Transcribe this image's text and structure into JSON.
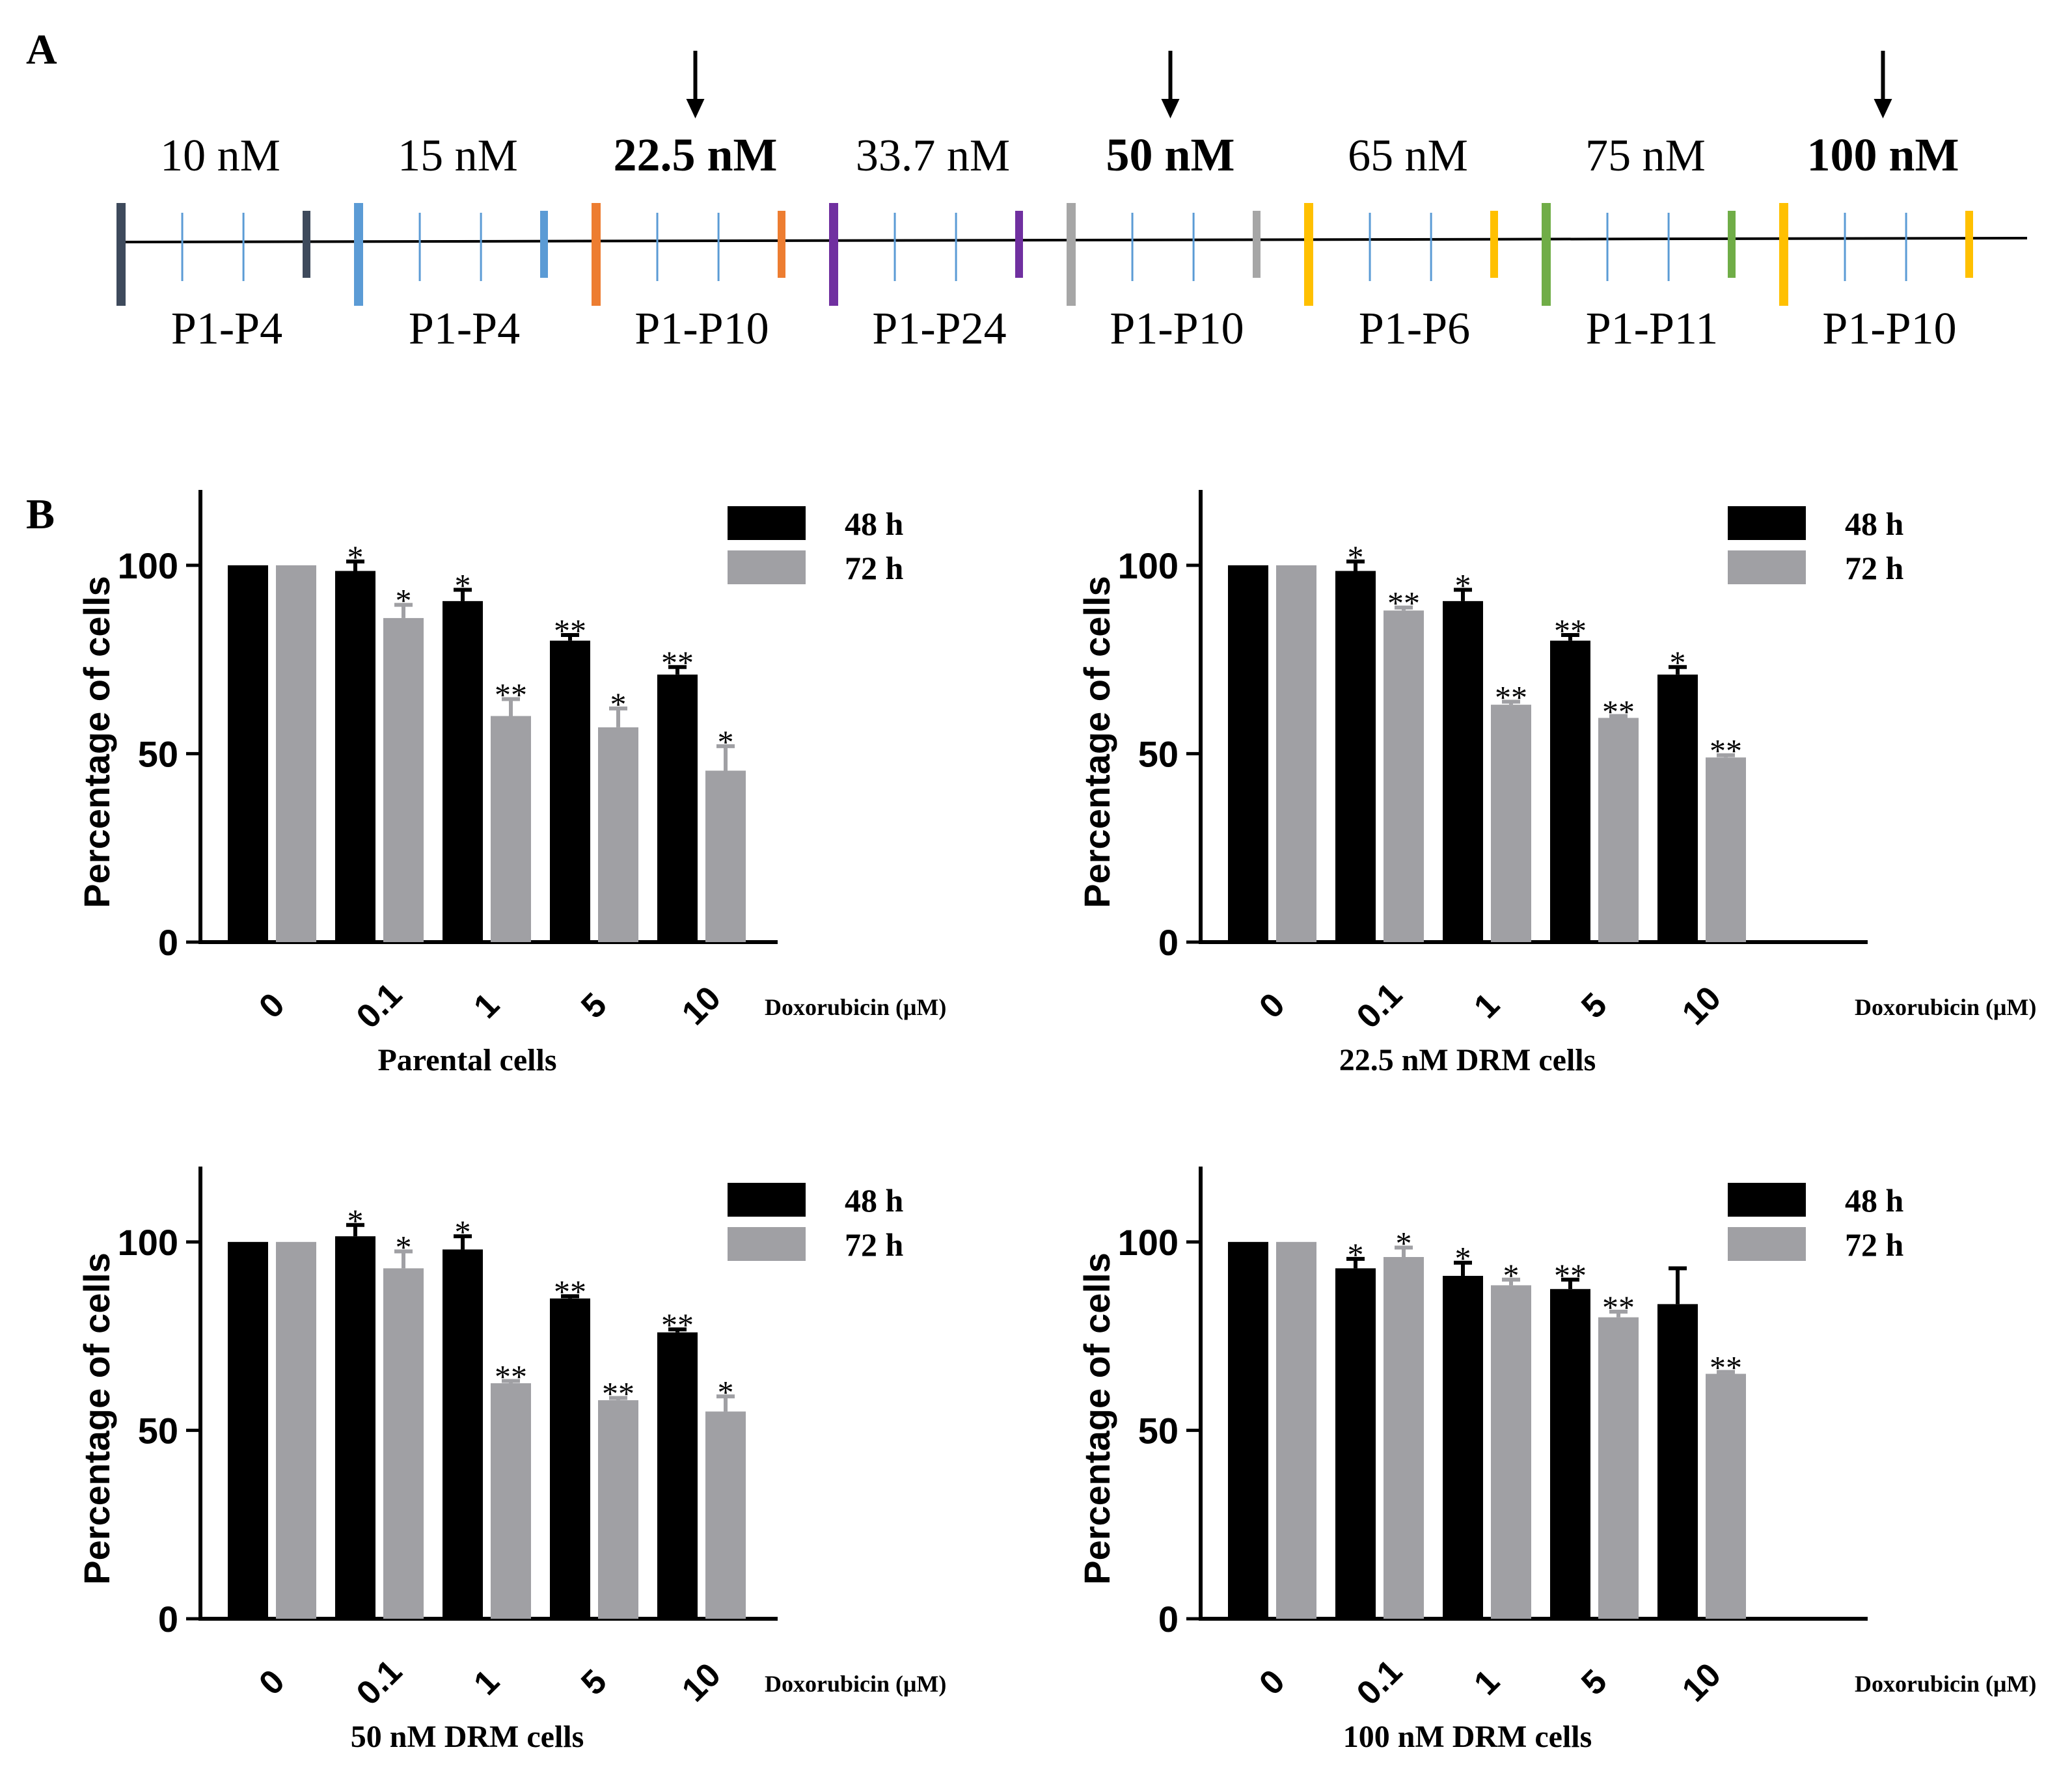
{
  "panel_a": {
    "label": "A",
    "stages": [
      {
        "concentration": "10 nM",
        "passages": "P1-P4",
        "color": "#3e4a5c",
        "bold": false,
        "arrow": false
      },
      {
        "concentration": "15 nM",
        "passages": "P1-P4",
        "color": "#5b9bd5",
        "bold": false,
        "arrow": false
      },
      {
        "concentration": "22.5 nM",
        "passages": "P1-P10",
        "color": "#ed7d31",
        "bold": true,
        "arrow": true
      },
      {
        "concentration": "33.7 nM",
        "passages": "P1-P24",
        "color": "#7030a0",
        "bold": false,
        "arrow": false
      },
      {
        "concentration": "50 nM",
        "passages": "P1-P10",
        "color": "#a6a6a6",
        "bold": true,
        "arrow": true
      },
      {
        "concentration": "65 nM",
        "passages": "P1-P6",
        "color": "#ffc000",
        "bold": false,
        "arrow": false
      },
      {
        "concentration": "75 nM",
        "passages": "P1-P11",
        "color": "#70ad47",
        "bold": false,
        "arrow": false
      },
      {
        "concentration": "100 nM",
        "passages": "P1-P10",
        "color": "#ffc000",
        "bold": true,
        "arrow": true
      }
    ],
    "minor_tick_color": "#5b9bd5"
  },
  "panel_b": {
    "label": "B"
  },
  "chart_data": [
    {
      "type": "bar",
      "title": "Parental cells",
      "ylabel": "Percentage of cells",
      "xlabel": "Doxorubicin (μM)",
      "categories": [
        "0",
        "0.1",
        "1",
        "5",
        "10"
      ],
      "ylim": [
        0,
        120
      ],
      "yticks": [
        0,
        50,
        100
      ],
      "legend_position": "top-right",
      "series": [
        {
          "name": "48 h",
          "color": "#000000",
          "values": [
            100,
            98.5,
            90.5,
            80,
            71
          ],
          "errors": [
            0,
            2.5,
            3,
            1.5,
            2
          ],
          "significance": [
            "",
            "*",
            "*",
            "**",
            "**"
          ]
        },
        {
          "name": "72 h",
          "color": "#a0a0a4",
          "values": [
            100,
            86,
            60,
            57,
            45.5
          ],
          "errors": [
            0,
            3.5,
            4.5,
            5,
            6.5
          ],
          "significance": [
            "",
            "*",
            "**",
            "*",
            "*"
          ]
        }
      ]
    },
    {
      "type": "bar",
      "title": "22.5 nM DRM cells",
      "ylabel": "Percentage of cells",
      "xlabel": "Doxorubicin (μM)",
      "categories": [
        "0",
        "0.1",
        "1",
        "5",
        "10"
      ],
      "ylim": [
        0,
        120
      ],
      "yticks": [
        0,
        50,
        100
      ],
      "legend_position": "top-right",
      "series": [
        {
          "name": "48 h",
          "color": "#000000",
          "values": [
            100,
            98.5,
            90.5,
            80,
            71
          ],
          "errors": [
            0,
            2.5,
            3,
            1.5,
            2
          ],
          "significance": [
            "",
            "*",
            "*",
            "**",
            "*"
          ]
        },
        {
          "name": "72 h",
          "color": "#a0a0a4",
          "values": [
            100,
            88,
            63,
            59.5,
            49
          ],
          "errors": [
            0,
            0.8,
            0.8,
            0.5,
            0.6
          ],
          "significance": [
            "",
            "**",
            "**",
            "**",
            "**"
          ]
        }
      ]
    },
    {
      "type": "bar",
      "title": "50 nM DRM cells",
      "ylabel": "Percentage of cells",
      "xlabel": "Doxorubicin (μM)",
      "categories": [
        "0",
        "0.1",
        "1",
        "5",
        "10"
      ],
      "ylim": [
        0,
        120
      ],
      "yticks": [
        0,
        50,
        100
      ],
      "legend_position": "top-right",
      "series": [
        {
          "name": "48 h",
          "color": "#000000",
          "values": [
            100,
            101.5,
            98,
            85,
            76
          ],
          "errors": [
            0,
            3,
            3.5,
            0.6,
            0.8
          ],
          "significance": [
            "",
            "*",
            "*",
            "**",
            "**"
          ]
        },
        {
          "name": "72 h",
          "color": "#a0a0a4",
          "values": [
            100,
            93,
            62.5,
            58,
            55
          ],
          "errors": [
            0,
            4.5,
            0.6,
            0.6,
            4
          ],
          "significance": [
            "",
            "*",
            "**",
            "**",
            "*"
          ]
        }
      ]
    },
    {
      "type": "bar",
      "title": "100 nM DRM cells",
      "ylabel": "Percentage of cells",
      "xlabel": "Doxorubicin (μM)",
      "categories": [
        "0",
        "0.1",
        "1",
        "5",
        "10"
      ],
      "ylim": [
        0,
        120
      ],
      "yticks": [
        0,
        50,
        100
      ],
      "legend_position": "top-right",
      "series": [
        {
          "name": "48 h",
          "color": "#000000",
          "values": [
            100,
            93,
            91,
            87.5,
            83.5
          ],
          "errors": [
            0,
            2.5,
            3.5,
            2.5,
            9.5
          ],
          "significance": [
            "",
            "*",
            "*",
            "**",
            ""
          ]
        },
        {
          "name": "72 h",
          "color": "#a0a0a4",
          "values": [
            100,
            96,
            88.5,
            80,
            65
          ],
          "errors": [
            0,
            2.5,
            1.5,
            1.5,
            0.5
          ],
          "significance": [
            "",
            "*",
            "*",
            "**",
            "**"
          ]
        }
      ]
    }
  ]
}
